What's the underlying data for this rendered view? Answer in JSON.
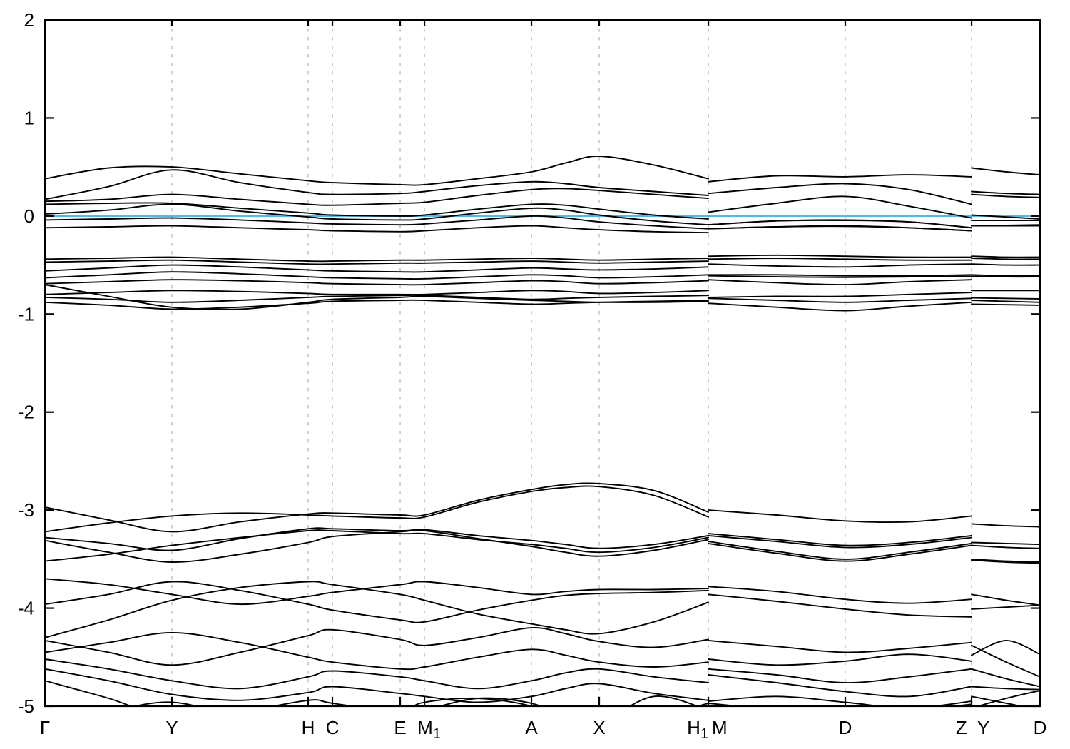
{
  "chart_data": {
    "type": "line",
    "title": "",
    "xlabel": "",
    "ylabel": "",
    "description": "Electronic band structure along high-symmetry k-path with Fermi level at 0",
    "ylim": [
      -5,
      2
    ],
    "yticks": [
      2,
      1,
      0,
      -1,
      -2,
      -3,
      -4,
      -5
    ],
    "grid": true,
    "legend": "none",
    "band_color": "#000000",
    "gridline_color": "#b3b3b3",
    "fermi_line": {
      "energy": 0.0,
      "color": "#56b7e6"
    },
    "kpath_labels": [
      "Γ",
      "Y",
      "H",
      "C",
      "E",
      "M1",
      "A",
      "X",
      "H1",
      "M",
      "D",
      "Z",
      "Y",
      "D"
    ],
    "tick_positions": [
      0.0,
      0.1276,
      0.2645,
      0.2889,
      0.357,
      0.3814,
      0.4889,
      0.557,
      0.6667,
      0.8043,
      0.9312,
      1.0
    ],
    "gridline_positions": [
      0.1276,
      0.2645,
      0.2889,
      0.357,
      0.3814,
      0.4889,
      0.557,
      0.6667,
      0.8043,
      0.9312
    ],
    "x_labels": [
      {
        "text": "Γ",
        "sub": "",
        "pos": 0.0
      },
      {
        "text": "Y",
        "sub": "",
        "pos": 0.1276
      },
      {
        "text": "H",
        "sub": "",
        "pos": 0.2645
      },
      {
        "text": "C",
        "sub": "",
        "pos": 0.2889
      },
      {
        "text": "E",
        "sub": "",
        "pos": 0.357
      },
      {
        "text": "M",
        "sub": "1",
        "pos": 0.386
      },
      {
        "text": "A",
        "sub": "",
        "pos": 0.4889
      },
      {
        "text": "X",
        "sub": "",
        "pos": 0.557
      },
      {
        "text": "H",
        "sub": "1",
        "pos": 0.656
      },
      {
        "text": "M",
        "sub": "",
        "pos": 0.678
      },
      {
        "text": "D",
        "sub": "",
        "pos": 0.8043
      },
      {
        "text": "Z",
        "sub": "",
        "pos": 0.921
      },
      {
        "text": "Y",
        "sub": "",
        "pos": 0.943
      },
      {
        "text": "D",
        "sub": "",
        "pos": 1.0
      }
    ],
    "x_segments": {
      "left": [
        0.0,
        0.064,
        0.1276,
        0.196,
        0.2645,
        0.2889,
        0.357,
        0.3814,
        0.435,
        0.4889,
        0.523,
        0.557,
        0.612,
        0.6667
      ],
      "mid": [
        0.6667,
        0.735,
        0.8043,
        0.868,
        0.9312
      ],
      "right": [
        0.9312,
        0.966,
        1.0
      ]
    },
    "bands": [
      {
        "left": [
          0.38,
          0.49,
          0.5,
          0.43,
          0.36,
          0.34,
          0.32,
          0.32,
          0.38,
          0.45,
          0.54,
          0.61,
          0.52,
          0.38
        ],
        "mid": [
          0.35,
          0.41,
          0.4,
          0.42,
          0.4
        ],
        "right": [
          0.49,
          0.45,
          0.42
        ]
      },
      {
        "left": [
          0.17,
          0.3,
          0.47,
          0.34,
          0.24,
          0.22,
          0.23,
          0.25,
          0.31,
          0.35,
          0.33,
          0.29,
          0.25,
          0.21
        ],
        "mid": [
          0.23,
          0.29,
          0.33,
          0.27,
          0.12
        ],
        "right": [
          0.25,
          0.23,
          0.22
        ]
      },
      {
        "left": [
          0.15,
          0.17,
          0.22,
          0.17,
          0.12,
          0.11,
          0.13,
          0.14,
          0.21,
          0.27,
          0.28,
          0.26,
          0.22,
          0.18
        ],
        "mid": [
          0.04,
          0.13,
          0.2,
          0.1,
          -0.02
        ],
        "right": [
          0.22,
          0.2,
          0.19
        ]
      },
      {
        "left": [
          0.12,
          0.13,
          0.13,
          0.08,
          0.03,
          0.01,
          0.0,
          0.01,
          0.07,
          0.12,
          0.11,
          0.07,
          0.01,
          -0.03
        ],
        "mid": [
          -0.09,
          -0.05,
          -0.04,
          -0.06,
          -0.12
        ],
        "right": [
          0.01,
          -0.01,
          -0.03
        ]
      },
      {
        "left": [
          0.02,
          0.06,
          0.12,
          0.05,
          -0.01,
          -0.03,
          -0.04,
          -0.03,
          0.03,
          0.08,
          0.06,
          0.01,
          -0.05,
          -0.09
        ],
        "mid": [
          -0.09,
          -0.05,
          -0.045,
          -0.06,
          -0.12
        ],
        "right": [
          -0.045,
          -0.045,
          -0.045
        ]
      },
      {
        "left": [
          -0.04,
          -0.03,
          -0.02,
          -0.04,
          -0.07,
          -0.08,
          -0.09,
          -0.08,
          -0.04,
          0.0,
          -0.02,
          -0.06,
          -0.1,
          -0.13
        ],
        "mid": [
          -0.13,
          -0.11,
          -0.1,
          -0.12,
          -0.15
        ],
        "right": [
          -0.1,
          -0.095,
          -0.09
        ]
      },
      {
        "left": [
          -0.12,
          -0.11,
          -0.1,
          -0.12,
          -0.14,
          -0.15,
          -0.16,
          -0.15,
          -0.12,
          -0.1,
          -0.12,
          -0.14,
          -0.16,
          -0.17
        ],
        "mid": [
          -0.13,
          -0.11,
          -0.105,
          -0.12,
          -0.15
        ],
        "right": [
          -0.1,
          -0.1,
          -0.1
        ]
      },
      {
        "left": [
          -0.44,
          -0.43,
          -0.42,
          -0.44,
          -0.46,
          -0.46,
          -0.45,
          -0.45,
          -0.44,
          -0.43,
          -0.44,
          -0.45,
          -0.44,
          -0.43
        ],
        "mid": [
          -0.41,
          -0.4,
          -0.41,
          -0.42,
          -0.42
        ],
        "right": [
          -0.41,
          -0.42,
          -0.42
        ]
      },
      {
        "left": [
          -0.47,
          -0.46,
          -0.45,
          -0.47,
          -0.49,
          -0.49,
          -0.48,
          -0.48,
          -0.47,
          -0.46,
          -0.47,
          -0.48,
          -0.47,
          -0.46
        ],
        "mid": [
          -0.44,
          -0.43,
          -0.44,
          -0.45,
          -0.45
        ],
        "right": [
          -0.43,
          -0.44,
          -0.44
        ]
      },
      {
        "left": [
          -0.56,
          -0.53,
          -0.5,
          -0.52,
          -0.55,
          -0.56,
          -0.57,
          -0.57,
          -0.55,
          -0.53,
          -0.54,
          -0.55,
          -0.54,
          -0.52
        ],
        "mid": [
          -0.49,
          -0.51,
          -0.52,
          -0.5,
          -0.49
        ],
        "right": [
          -0.49,
          -0.5,
          -0.5
        ]
      },
      {
        "left": [
          -0.63,
          -0.6,
          -0.57,
          -0.59,
          -0.62,
          -0.63,
          -0.64,
          -0.64,
          -0.62,
          -0.6,
          -0.61,
          -0.63,
          -0.62,
          -0.6
        ],
        "mid": [
          -0.6,
          -0.6,
          -0.61,
          -0.61,
          -0.6
        ],
        "right": [
          -0.6,
          -0.61,
          -0.61
        ]
      },
      {
        "left": [
          -0.69,
          -0.67,
          -0.65,
          -0.66,
          -0.68,
          -0.69,
          -0.7,
          -0.7,
          -0.68,
          -0.66,
          -0.67,
          -0.69,
          -0.68,
          -0.66
        ],
        "mid": [
          -0.61,
          -0.62,
          -0.625,
          -0.62,
          -0.615
        ],
        "right": [
          -0.615,
          -0.62,
          -0.62
        ]
      },
      {
        "left": [
          -0.8,
          -0.78,
          -0.76,
          -0.77,
          -0.79,
          -0.8,
          -0.8,
          -0.8,
          -0.78,
          -0.76,
          -0.77,
          -0.79,
          -0.78,
          -0.76
        ],
        "mid": [
          -0.65,
          -0.68,
          -0.7,
          -0.67,
          -0.65
        ],
        "right": [
          -0.76,
          -0.76,
          -0.76
        ]
      },
      {
        "left": [
          -0.83,
          -0.85,
          -0.88,
          -0.86,
          -0.83,
          -0.82,
          -0.81,
          -0.81,
          -0.83,
          -0.85,
          -0.84,
          -0.83,
          -0.82,
          -0.81
        ],
        "mid": [
          -0.83,
          -0.82,
          -0.82,
          -0.8,
          -0.78
        ],
        "right": [
          -0.835,
          -0.84,
          -0.845
        ]
      },
      {
        "left": [
          -0.88,
          -0.91,
          -0.95,
          -0.93,
          -0.89,
          -0.87,
          -0.86,
          -0.86,
          -0.88,
          -0.9,
          -0.89,
          -0.88,
          -0.87,
          -0.86
        ],
        "mid": [
          -0.89,
          -0.93,
          -0.965,
          -0.92,
          -0.88
        ],
        "right": [
          -0.9,
          -0.905,
          -0.91
        ]
      },
      {
        "left": [
          -0.7,
          -0.82,
          -0.93,
          -0.95,
          -0.88,
          -0.85,
          -0.83,
          -0.82,
          -0.84,
          -0.86,
          -0.87,
          -0.88,
          -0.88,
          -0.87
        ],
        "mid": [
          -0.84,
          -0.86,
          -0.88,
          -0.86,
          -0.84
        ],
        "right": [
          -0.86,
          -0.87,
          -0.88
        ]
      },
      {
        "left": [
          -2.97,
          -3.1,
          -3.22,
          -3.12,
          -3.04,
          -3.03,
          -3.05,
          -3.05,
          -2.9,
          -2.79,
          -2.74,
          -2.73,
          -2.8,
          -3.02
        ],
        "mid": [
          -3.0,
          -3.05,
          -3.11,
          -3.12,
          -3.06
        ],
        "right": [
          -3.14,
          -3.16,
          -3.17
        ]
      },
      {
        "left": [
          -3.22,
          -3.13,
          -3.06,
          -3.03,
          -3.05,
          -3.06,
          -3.08,
          -3.07,
          -2.92,
          -2.81,
          -2.77,
          -2.76,
          -2.85,
          -3.07
        ],
        "mid": [
          -3.24,
          -3.3,
          -3.36,
          -3.33,
          -3.26
        ],
        "right": [
          -3.33,
          -3.34,
          -3.35
        ]
      },
      {
        "left": [
          -3.28,
          -3.34,
          -3.41,
          -3.29,
          -3.19,
          -3.19,
          -3.21,
          -3.2,
          -3.26,
          -3.31,
          -3.35,
          -3.39,
          -3.35,
          -3.26
        ],
        "mid": [
          -3.32,
          -3.42,
          -3.5,
          -3.43,
          -3.34
        ],
        "right": [
          -3.5,
          -3.52,
          -3.53
        ]
      },
      {
        "left": [
          -3.31,
          -3.43,
          -3.53,
          -3.45,
          -3.33,
          -3.27,
          -3.22,
          -3.21,
          -3.29,
          -3.37,
          -3.43,
          -3.47,
          -3.41,
          -3.3
        ],
        "mid": [
          -3.34,
          -3.44,
          -3.52,
          -3.45,
          -3.36
        ],
        "right": [
          -3.51,
          -3.53,
          -3.54
        ]
      },
      {
        "left": [
          -3.52,
          -3.45,
          -3.36,
          -3.28,
          -3.21,
          -3.21,
          -3.24,
          -3.24,
          -3.3,
          -3.35,
          -3.39,
          -3.43,
          -3.38,
          -3.28
        ],
        "mid": [
          -3.26,
          -3.32,
          -3.38,
          -3.35,
          -3.28
        ],
        "right": [
          -3.36,
          -3.38,
          -3.39
        ]
      },
      {
        "left": [
          -3.7,
          -3.76,
          -3.86,
          -3.96,
          -3.88,
          -3.84,
          -3.76,
          -3.73,
          -3.79,
          -3.86,
          -3.83,
          -3.81,
          -3.81,
          -3.8
        ],
        "mid": [
          -3.78,
          -3.83,
          -3.91,
          -3.95,
          -3.91
        ],
        "right": [
          -3.86,
          -3.92,
          -3.97
        ]
      },
      {
        "left": [
          -3.96,
          -3.86,
          -3.73,
          -3.82,
          -3.96,
          -4.02,
          -4.12,
          -4.14,
          -4.02,
          -3.92,
          -3.87,
          -3.85,
          -3.84,
          -3.82
        ],
        "mid": [
          -3.86,
          -3.93,
          -4.01,
          -4.07,
          -4.09
        ],
        "right": [
          -4.01,
          -3.99,
          -3.97
        ]
      },
      {
        "left": [
          -4.3,
          -4.12,
          -3.92,
          -3.79,
          -3.73,
          -3.76,
          -3.86,
          -3.92,
          -4.06,
          -4.16,
          -4.22,
          -4.26,
          -4.14,
          -3.94
        ],
        "mid": [
          -4.33,
          -4.39,
          -4.45,
          -4.41,
          -4.35
        ],
        "right": [
          -4.48,
          -4.33,
          -4.47
        ]
      },
      {
        "left": [
          -4.33,
          -4.45,
          -4.58,
          -4.45,
          -4.28,
          -4.22,
          -4.32,
          -4.38,
          -4.3,
          -4.2,
          -4.26,
          -4.34,
          -4.4,
          -4.32
        ],
        "mid": [
          -4.52,
          -4.58,
          -4.54,
          -4.47,
          -4.54
        ],
        "right": [
          -4.38,
          -4.55,
          -4.7
        ]
      },
      {
        "left": [
          -4.45,
          -4.35,
          -4.25,
          -4.35,
          -4.5,
          -4.55,
          -4.62,
          -4.6,
          -4.5,
          -4.42,
          -4.48,
          -4.55,
          -4.6,
          -4.55
        ],
        "mid": [
          -4.62,
          -4.68,
          -4.76,
          -4.7,
          -4.62
        ],
        "right": [
          -4.62,
          -4.72,
          -4.8
        ]
      },
      {
        "left": [
          -4.52,
          -4.62,
          -4.74,
          -4.82,
          -4.7,
          -4.64,
          -4.7,
          -4.74,
          -4.82,
          -4.74,
          -4.66,
          -4.62,
          -4.7,
          -4.76
        ],
        "mid": [
          -4.68,
          -4.76,
          -4.85,
          -4.9,
          -4.8
        ],
        "right": [
          -4.8,
          -4.82,
          -4.83
        ]
      },
      {
        "left": [
          -4.62,
          -4.74,
          -4.88,
          -4.94,
          -4.86,
          -4.8,
          -4.87,
          -4.9,
          -4.96,
          -4.9,
          -4.82,
          -4.77,
          -4.87,
          -4.94
        ],
        "mid": [
          -4.95,
          -4.9,
          -4.96,
          -5.02,
          -4.95
        ],
        "right": [
          -5.02,
          -4.92,
          -4.84
        ]
      },
      {
        "left": [
          -4.74,
          -4.92,
          -5.12,
          -5.06,
          -4.94,
          -4.97,
          -5.07,
          -5.04,
          -4.92,
          -4.97,
          -5.12,
          -5.17,
          -4.9,
          -5.04
        ],
        "mid": [
          -4.97,
          -5.04,
          -5.1,
          -5.05,
          -4.98
        ],
        "right": [
          -4.9,
          -4.97,
          -5.04
        ]
      },
      {
        "left": [
          -5.22,
          -5.06,
          -4.96,
          -5.12,
          -5.26,
          -5.22,
          -5.06,
          -4.96,
          -4.92,
          -5.0,
          -5.16,
          -5.22,
          -5.12,
          -4.97
        ],
        "mid": [
          -5.05,
          -5.12,
          -5.18,
          -5.12,
          -5.06
        ],
        "right": [
          -5.1,
          -5.15,
          -5.2
        ]
      }
    ]
  }
}
